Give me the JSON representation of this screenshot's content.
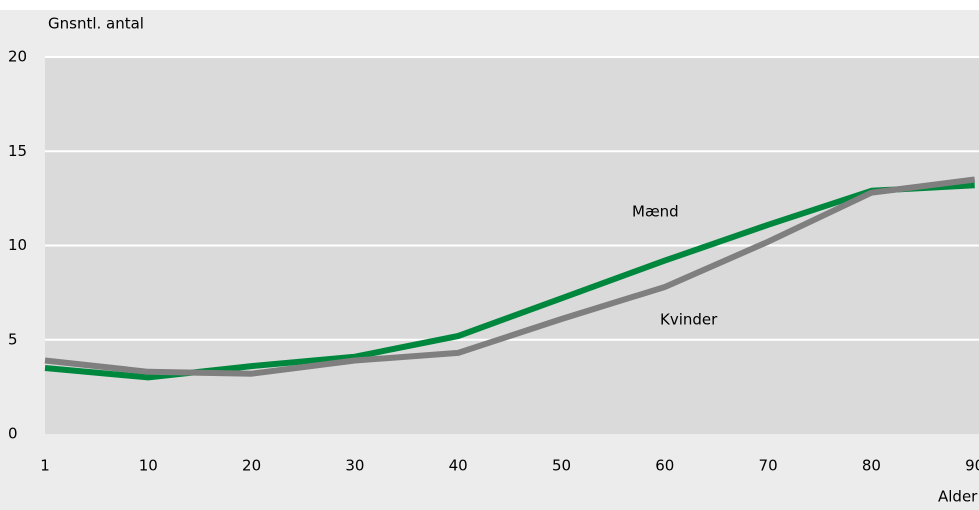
{
  "chart_data": {
    "type": "line",
    "y_label": "Gnsntl. antal",
    "x_label": "Alder",
    "categories": [
      "1",
      "10",
      "20",
      "30",
      "40",
      "50",
      "60",
      "70",
      "80",
      "90"
    ],
    "series": [
      {
        "name": "Mænd",
        "color": "#00873e",
        "values": [
          3.5,
          3.0,
          3.6,
          4.1,
          5.2,
          7.2,
          9.2,
          11.1,
          12.9,
          13.2
        ]
      },
      {
        "name": "Kvinder",
        "color": "#7f7f7f",
        "values": [
          3.9,
          3.3,
          3.2,
          3.9,
          4.3,
          6.1,
          7.8,
          10.2,
          12.8,
          13.5
        ]
      }
    ],
    "ylim": [
      0,
      20
    ],
    "yticks": [
      0,
      5,
      10,
      15,
      20
    ],
    "grid": true
  }
}
